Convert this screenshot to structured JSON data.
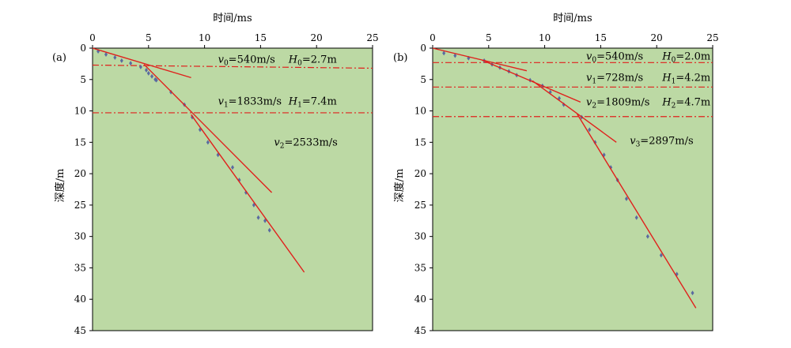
{
  "chart_data": [
    {
      "type": "scatter",
      "panel_label": "(a)",
      "xlabel": "时间/ms",
      "ylabel": "深度/m",
      "xlim": [
        0,
        25
      ],
      "ylim": [
        45,
        0
      ],
      "xticks": [
        0,
        5,
        10,
        15,
        20,
        25
      ],
      "yticks": [
        0,
        5,
        10,
        15,
        20,
        25,
        30,
        35,
        40,
        45
      ],
      "background": "#bcd9a4",
      "points": {
        "color": "#5a6aa0",
        "x": [
          0.5,
          1.2,
          2.0,
          2.6,
          3.4,
          4.3,
          4.8,
          5.0,
          5.3,
          5.6,
          5.7,
          7.0,
          8.2,
          8.9,
          9.6,
          10.3,
          11.2,
          12.5,
          13.1,
          13.7,
          14.4,
          14.8,
          15.4,
          15.8
        ],
        "y": [
          0.5,
          1.0,
          1.5,
          2.0,
          2.4,
          3.0,
          3.5,
          4.0,
          4.5,
          5.0,
          5.1,
          7.0,
          9.0,
          11.0,
          13.0,
          15.0,
          17.0,
          19.0,
          21.0,
          23.0,
          25.0,
          27.0,
          27.5,
          29.0
        ]
      },
      "fit_lines": [
        {
          "name": "v0",
          "color": "#e0201c",
          "x": [
            0,
            8.8
          ],
          "y": [
            0,
            4.7
          ]
        },
        {
          "name": "v1",
          "color": "#e0201c",
          "x": [
            4.6,
            16.0
          ],
          "y": [
            2.6,
            23.0
          ]
        },
        {
          "name": "v2",
          "color": "#e0201c",
          "x": [
            8.8,
            18.9
          ],
          "y": [
            10.6,
            35.7
          ]
        }
      ],
      "interfaces": [
        {
          "color": "#e0201c",
          "y_left": 2.7,
          "y_right": 3.2
        },
        {
          "color": "#e0201c",
          "y_left": 10.3,
          "y_right": 10.3
        }
      ],
      "annotations": [
        {
          "v_sub": "0",
          "v_val": "=540m/s",
          "h_sub": "0",
          "h_val": "=2.7m",
          "vx": 11.2,
          "hx": 17.5,
          "y": 1.8
        },
        {
          "v_sub": "1",
          "v_val": "=1833m/s",
          "h_sub": "1",
          "h_val": "=7.4m",
          "vx": 11.2,
          "hx": 17.5,
          "y": 8.5
        },
        {
          "v_sub": "2",
          "v_val": "=2533m/s",
          "vx": 16.2,
          "y": 15.0
        }
      ]
    },
    {
      "type": "scatter",
      "panel_label": "(b)",
      "xlabel": "时间/ms",
      "ylabel": "深度/m",
      "xlim": [
        0,
        25
      ],
      "ylim": [
        45,
        0
      ],
      "xticks": [
        0,
        5,
        10,
        15,
        20,
        25
      ],
      "yticks": [
        0,
        5,
        10,
        15,
        20,
        25,
        30,
        35,
        40,
        45
      ],
      "background": "#bcd9a4",
      "points": {
        "color": "#5a6aa0",
        "x": [
          1.0,
          2.0,
          3.2,
          4.6,
          5.3,
          6.0,
          6.8,
          7.5,
          8.7,
          9.8,
          10.5,
          11.3,
          11.7,
          13.3,
          14.0,
          14.5,
          15.3,
          15.9,
          16.5,
          17.3,
          18.2,
          19.2,
          20.4,
          21.8,
          23.2
        ],
        "y": [
          0.8,
          1.2,
          1.6,
          2.0,
          2.6,
          3.1,
          3.7,
          4.3,
          5.1,
          6.0,
          7.0,
          8.0,
          9.0,
          11.0,
          13.0,
          15.0,
          17.0,
          19.0,
          21.0,
          24.0,
          27.0,
          30.0,
          33.0,
          36.0,
          39.0
        ]
      },
      "fit_lines": [
        {
          "name": "v0",
          "color": "#e0201c",
          "x": [
            0,
            8.4
          ],
          "y": [
            0,
            3.6
          ]
        },
        {
          "name": "v1",
          "color": "#e0201c",
          "x": [
            4.4,
            13.2
          ],
          "y": [
            1.9,
            8.6
          ]
        },
        {
          "name": "v2",
          "color": "#e0201c",
          "x": [
            8.9,
            16.4
          ],
          "y": [
            5.2,
            15.0
          ]
        },
        {
          "name": "v3",
          "color": "#e0201c",
          "x": [
            12.9,
            23.5
          ],
          "y": [
            10.5,
            41.4
          ]
        }
      ],
      "interfaces": [
        {
          "color": "#e0201c",
          "y_left": 2.3,
          "y_right": 2.3
        },
        {
          "color": "#e0201c",
          "y_left": 6.2,
          "y_right": 6.2
        },
        {
          "color": "#e0201c",
          "y_left": 10.9,
          "y_right": 10.9
        }
      ],
      "annotations": [
        {
          "v_sub": "0",
          "v_val": "=540m/s",
          "h_sub": "0",
          "h_val": "=2.0m",
          "vx": 13.7,
          "hx": 20.5,
          "y": 1.3
        },
        {
          "v_sub": "1",
          "v_val": "=728m/s",
          "h_sub": "1",
          "h_val": "=4.2m",
          "vx": 13.7,
          "hx": 20.5,
          "y": 4.7
        },
        {
          "v_sub": "2",
          "v_val": "=1809m/s",
          "h_sub": "2",
          "h_val": "=4.7m",
          "vx": 13.7,
          "hx": 20.5,
          "y": 8.6
        },
        {
          "v_sub": "3",
          "v_val": "=2897m/s",
          "vx": 17.6,
          "y": 14.8
        }
      ]
    }
  ]
}
